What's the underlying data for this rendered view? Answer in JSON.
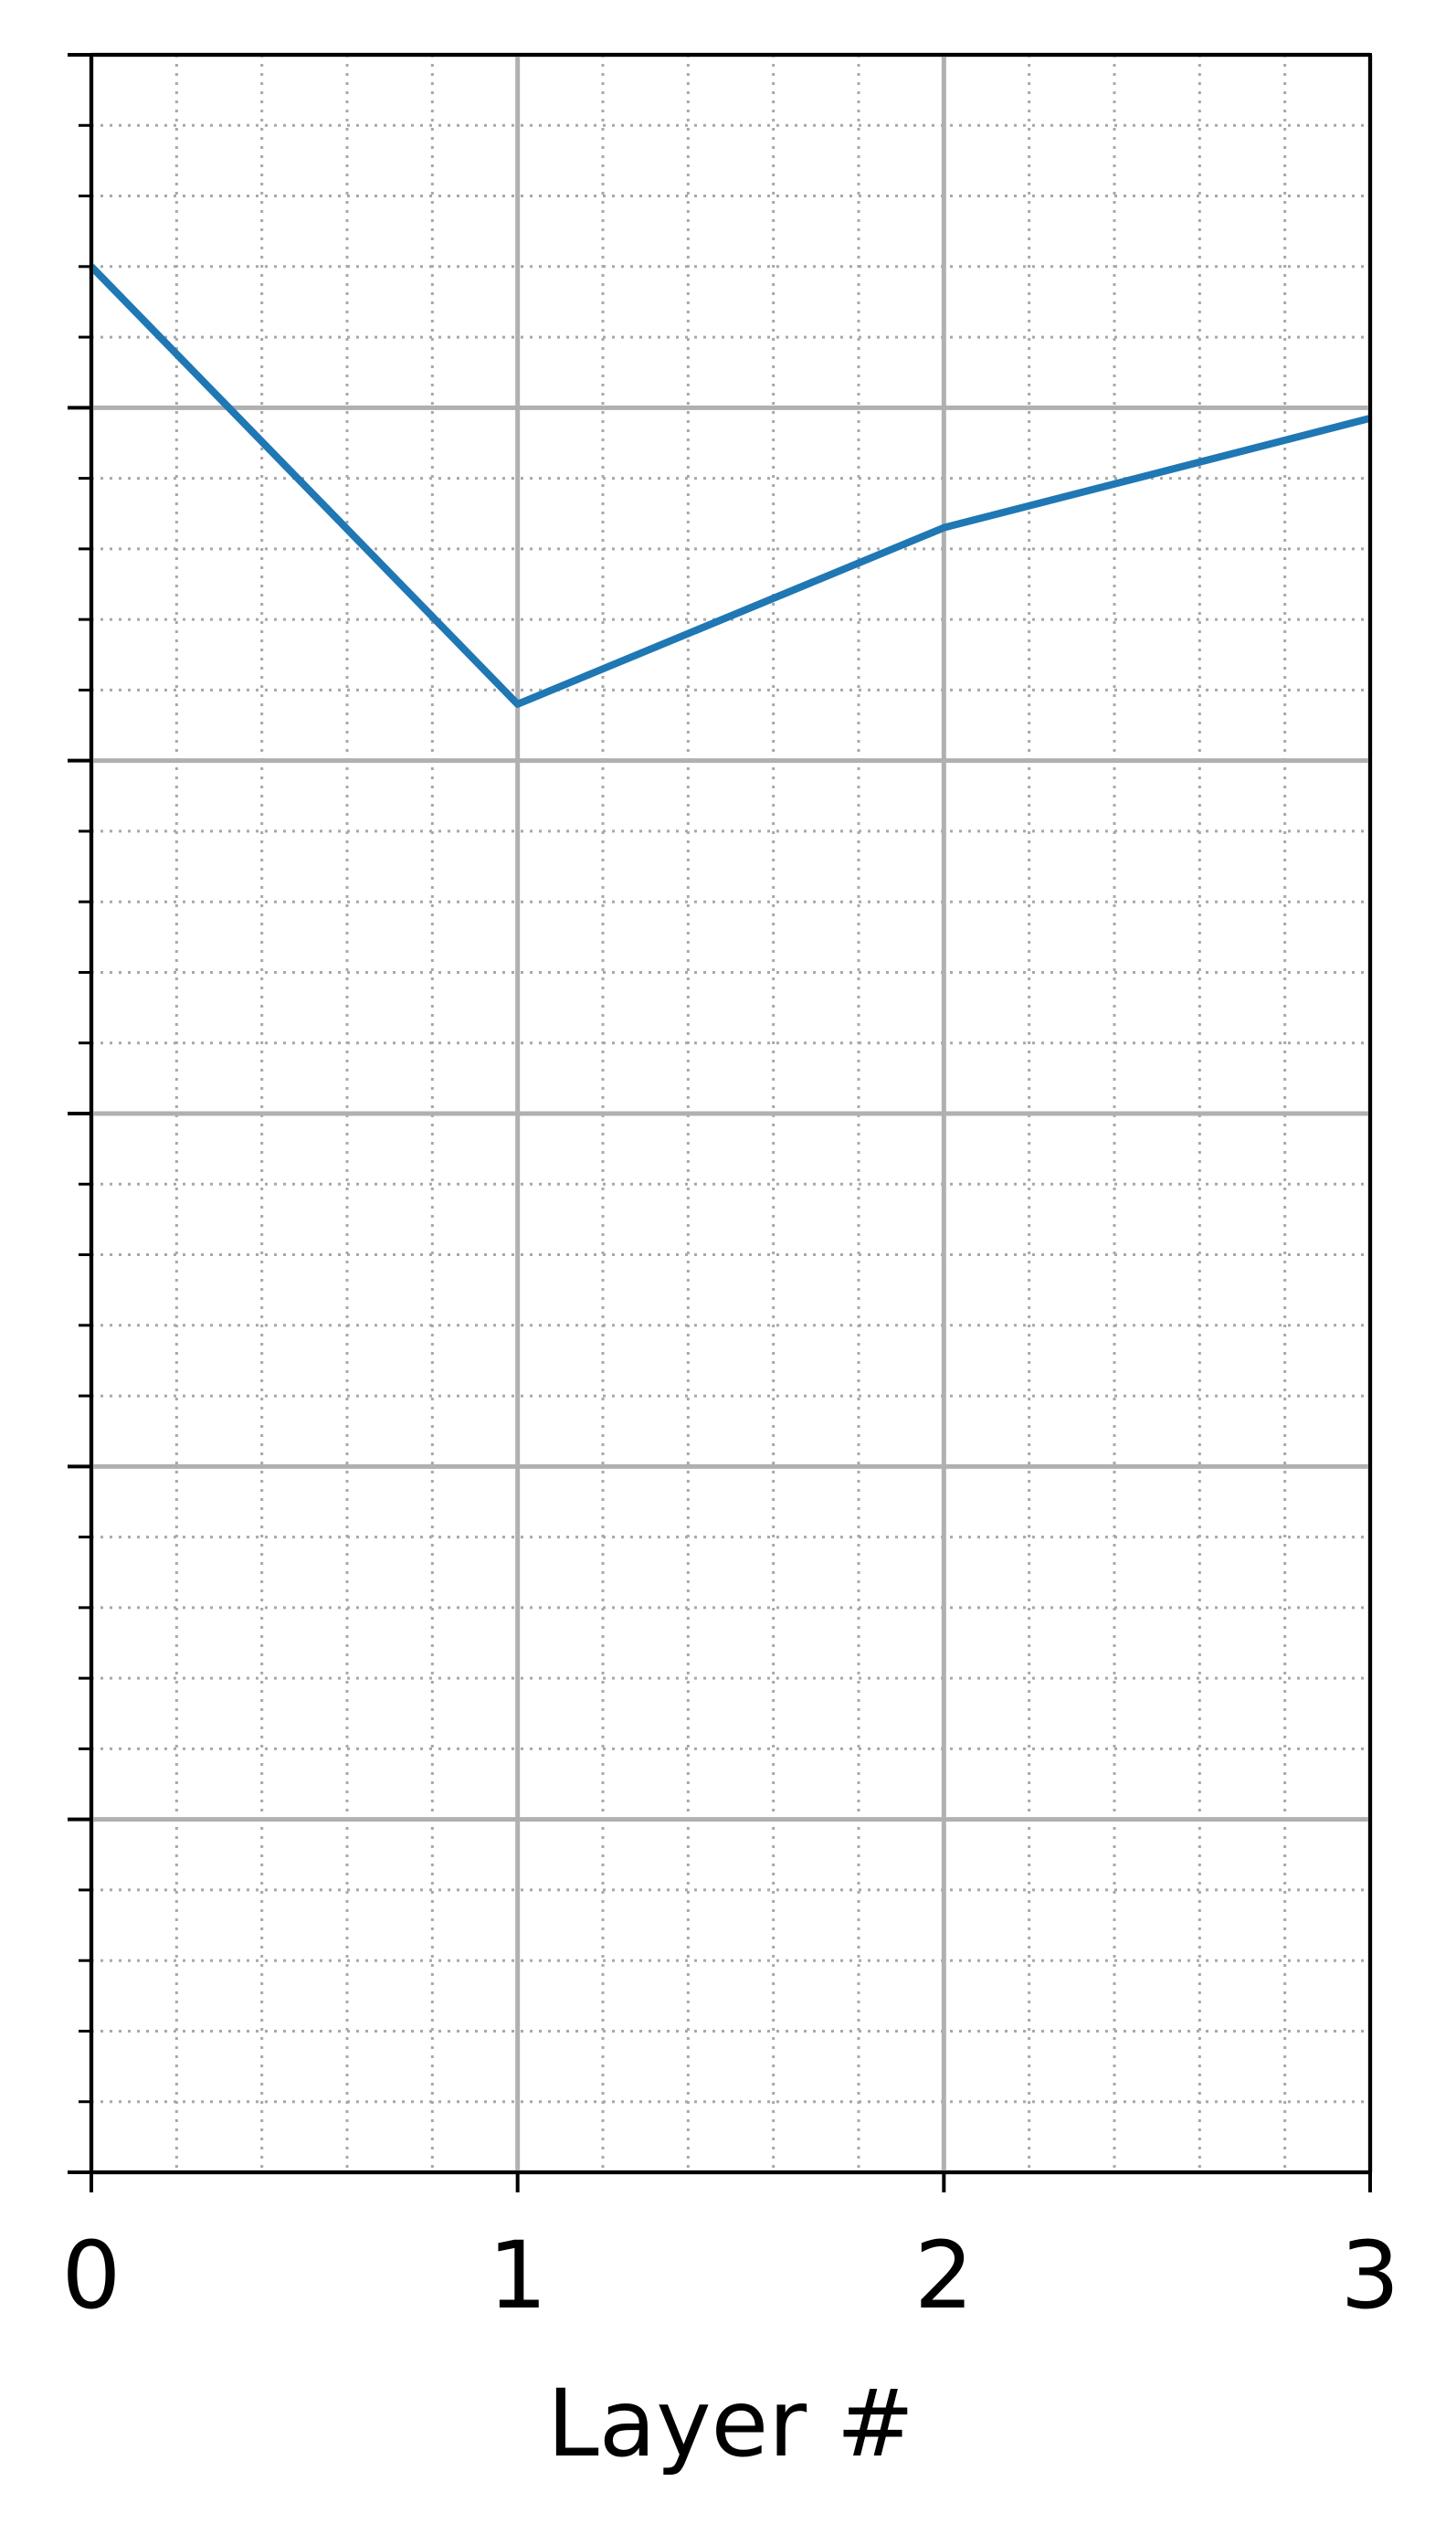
{
  "chart_data": {
    "type": "line",
    "title": "",
    "xlabel": "Layer #",
    "ylabel": "",
    "x": [
      0,
      1,
      2,
      3
    ],
    "xticks": [
      "0",
      "1",
      "2",
      "3"
    ],
    "xlim": [
      0,
      3
    ],
    "ylim": [
      0,
      6
    ],
    "y_major_ticks": [
      0,
      1,
      2,
      3,
      4,
      5,
      6
    ],
    "y_minor_step": 0.2,
    "x_minor_step": 0.2,
    "y_tick_labels_visible": false,
    "grid": {
      "major": true,
      "minor": true,
      "major_style": "solid",
      "minor_style": "dotted"
    },
    "series": [
      {
        "values": [
          5.4,
          4.16,
          4.66,
          4.97
        ],
        "color": "#1f77b4"
      }
    ],
    "colors": {
      "line": "#1f77b4",
      "major_grid": "#b0b0b0",
      "minor_grid": "#a8a8a8",
      "axes": "#000000"
    }
  }
}
